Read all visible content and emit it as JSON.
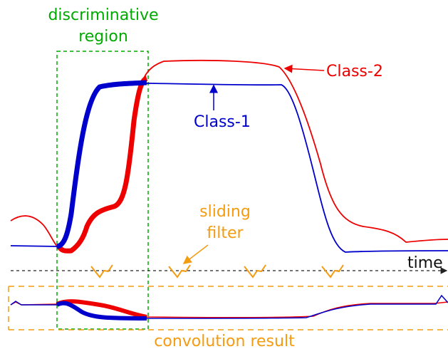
{
  "region_label": [
    "discriminative",
    "region"
  ],
  "class_labels": {
    "class_2": "Class-2",
    "class_1": "Class-1"
  },
  "filter_label": [
    "sliding",
    "filter"
  ],
  "axis_label": "time",
  "result_label": "convolution result"
}
